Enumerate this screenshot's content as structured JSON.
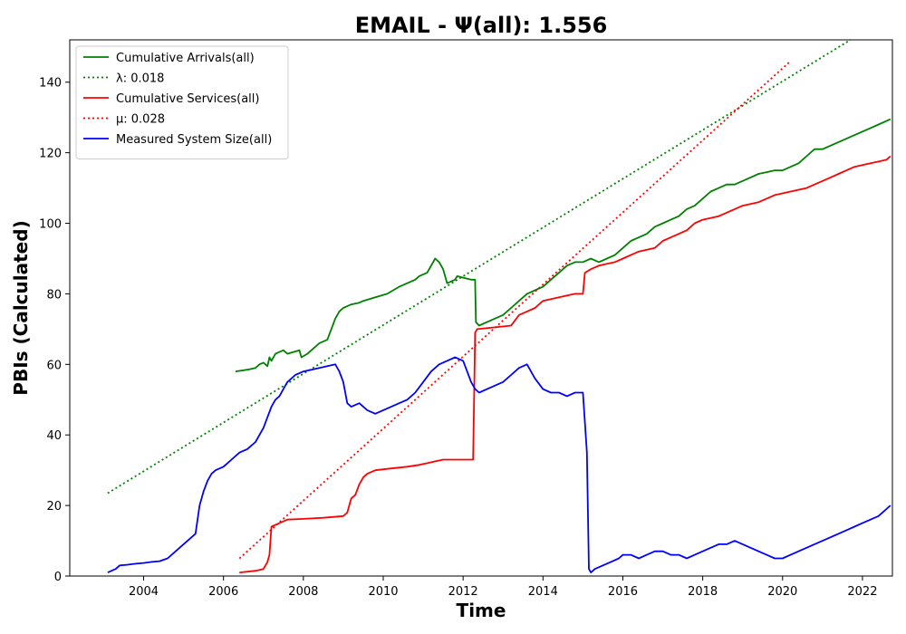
{
  "chart_data": {
    "type": "line",
    "title": "EMAIL -  Ψ(all): 1.556",
    "xlabel": "Time",
    "ylabel": "PBIs (Calculated)",
    "xlim": [
      2002.15,
      2022.75
    ],
    "ylim": [
      0,
      152
    ],
    "xticks": [
      2004,
      2006,
      2008,
      2010,
      2012,
      2014,
      2016,
      2018,
      2020,
      2022
    ],
    "yticks": [
      0,
      20,
      40,
      60,
      80,
      100,
      120,
      140
    ],
    "grid": false,
    "legend_position": "top-left",
    "series": [
      {
        "name": "Cumulative Arrivals(all)",
        "color": "#008000",
        "style": "solid",
        "points": [
          [
            2006.3,
            58
          ],
          [
            2006.6,
            58.5
          ],
          [
            2006.8,
            59
          ],
          [
            2006.9,
            60
          ],
          [
            2007.0,
            60.5
          ],
          [
            2007.1,
            59.5
          ],
          [
            2007.15,
            62
          ],
          [
            2007.2,
            61
          ],
          [
            2007.3,
            63
          ],
          [
            2007.5,
            64
          ],
          [
            2007.6,
            63
          ],
          [
            2007.9,
            64
          ],
          [
            2007.95,
            62
          ],
          [
            2008.1,
            63
          ],
          [
            2008.3,
            65
          ],
          [
            2008.4,
            66
          ],
          [
            2008.6,
            67
          ],
          [
            2008.7,
            70
          ],
          [
            2008.8,
            73
          ],
          [
            2008.9,
            75
          ],
          [
            2009.0,
            76
          ],
          [
            2009.2,
            77
          ],
          [
            2009.4,
            77.5
          ],
          [
            2009.5,
            78
          ],
          [
            2009.8,
            79
          ],
          [
            2010.1,
            80
          ],
          [
            2010.4,
            82
          ],
          [
            2010.6,
            83
          ],
          [
            2010.8,
            84
          ],
          [
            2010.9,
            85
          ],
          [
            2011.1,
            86
          ],
          [
            2011.2,
            88
          ],
          [
            2011.3,
            90
          ],
          [
            2011.4,
            89
          ],
          [
            2011.5,
            87
          ],
          [
            2011.6,
            83
          ],
          [
            2011.8,
            84
          ],
          [
            2011.85,
            85
          ],
          [
            2012.2,
            84
          ],
          [
            2012.3,
            84
          ],
          [
            2012.32,
            72
          ],
          [
            2012.4,
            71
          ],
          [
            2012.6,
            72
          ],
          [
            2012.8,
            73
          ],
          [
            2013.0,
            74
          ],
          [
            2013.2,
            76
          ],
          [
            2013.4,
            78
          ],
          [
            2013.5,
            79
          ],
          [
            2013.6,
            80
          ],
          [
            2013.8,
            81
          ],
          [
            2014.0,
            82
          ],
          [
            2014.2,
            84
          ],
          [
            2014.4,
            86
          ],
          [
            2014.5,
            87
          ],
          [
            2014.6,
            88
          ],
          [
            2014.8,
            89
          ],
          [
            2015.0,
            89
          ],
          [
            2015.2,
            90
          ],
          [
            2015.4,
            89
          ],
          [
            2015.6,
            90
          ],
          [
            2015.8,
            91
          ],
          [
            2016.0,
            93
          ],
          [
            2016.2,
            95
          ],
          [
            2016.4,
            96
          ],
          [
            2016.6,
            97
          ],
          [
            2016.8,
            99
          ],
          [
            2017.0,
            100
          ],
          [
            2017.2,
            101
          ],
          [
            2017.4,
            102
          ],
          [
            2017.6,
            104
          ],
          [
            2017.8,
            105
          ],
          [
            2018.0,
            107
          ],
          [
            2018.2,
            109
          ],
          [
            2018.4,
            110
          ],
          [
            2018.6,
            111
          ],
          [
            2018.8,
            111
          ],
          [
            2019.0,
            112
          ],
          [
            2019.2,
            113
          ],
          [
            2019.4,
            114
          ],
          [
            2019.6,
            114.5
          ],
          [
            2019.8,
            115
          ],
          [
            2020.0,
            115
          ],
          [
            2020.2,
            116
          ],
          [
            2020.4,
            117
          ],
          [
            2020.6,
            119
          ],
          [
            2020.8,
            121
          ],
          [
            2021.0,
            121
          ],
          [
            2021.2,
            122
          ],
          [
            2021.4,
            123
          ],
          [
            2021.6,
            124
          ],
          [
            2021.8,
            125
          ],
          [
            2022.0,
            126
          ],
          [
            2022.2,
            127
          ],
          [
            2022.4,
            128
          ],
          [
            2022.6,
            129
          ],
          [
            2022.7,
            129.5
          ]
        ]
      },
      {
        "name": "λ: 0.018",
        "color": "#008000",
        "style": "dotted",
        "points": [
          [
            2003.1,
            23.5
          ],
          [
            2021.7,
            152
          ]
        ]
      },
      {
        "name": "Cumulative Services(all)",
        "color": "#ff0000",
        "style": "solid",
        "points": [
          [
            2006.4,
            1
          ],
          [
            2006.8,
            1.5
          ],
          [
            2007.0,
            2
          ],
          [
            2007.1,
            4
          ],
          [
            2007.15,
            6
          ],
          [
            2007.2,
            14
          ],
          [
            2007.4,
            15
          ],
          [
            2007.6,
            16
          ],
          [
            2008.0,
            16.2
          ],
          [
            2008.5,
            16.5
          ],
          [
            2009.0,
            17
          ],
          [
            2009.1,
            18
          ],
          [
            2009.2,
            22
          ],
          [
            2009.3,
            23
          ],
          [
            2009.4,
            26
          ],
          [
            2009.5,
            28
          ],
          [
            2009.6,
            29
          ],
          [
            2009.8,
            30
          ],
          [
            2010.2,
            30.5
          ],
          [
            2010.6,
            31
          ],
          [
            2010.9,
            31.5
          ],
          [
            2011.1,
            32
          ],
          [
            2011.3,
            32.5
          ],
          [
            2011.5,
            33
          ],
          [
            2012.25,
            33
          ],
          [
            2012.3,
            69
          ],
          [
            2012.35,
            70
          ],
          [
            2012.8,
            70.5
          ],
          [
            2013.2,
            71
          ],
          [
            2013.4,
            74
          ],
          [
            2013.6,
            75
          ],
          [
            2013.8,
            76
          ],
          [
            2014.0,
            78
          ],
          [
            2014.4,
            79
          ],
          [
            2014.8,
            80
          ],
          [
            2015.0,
            80
          ],
          [
            2015.05,
            86
          ],
          [
            2015.2,
            87
          ],
          [
            2015.4,
            88
          ],
          [
            2015.8,
            89
          ],
          [
            2016.0,
            90
          ],
          [
            2016.2,
            91
          ],
          [
            2016.4,
            92
          ],
          [
            2016.8,
            93
          ],
          [
            2017.0,
            95
          ],
          [
            2017.2,
            96
          ],
          [
            2017.4,
            97
          ],
          [
            2017.6,
            98
          ],
          [
            2017.8,
            100
          ],
          [
            2018.0,
            101
          ],
          [
            2018.4,
            102
          ],
          [
            2018.6,
            103
          ],
          [
            2018.8,
            104
          ],
          [
            2019.0,
            105
          ],
          [
            2019.4,
            106
          ],
          [
            2019.6,
            107
          ],
          [
            2019.8,
            108
          ],
          [
            2020.2,
            109
          ],
          [
            2020.6,
            110
          ],
          [
            2020.8,
            111
          ],
          [
            2021.0,
            112
          ],
          [
            2021.2,
            113
          ],
          [
            2021.4,
            114
          ],
          [
            2021.6,
            115
          ],
          [
            2021.8,
            116
          ],
          [
            2022.0,
            116.5
          ],
          [
            2022.2,
            117
          ],
          [
            2022.4,
            117.5
          ],
          [
            2022.6,
            118
          ],
          [
            2022.7,
            119
          ]
        ]
      },
      {
        "name": "μ: 0.028",
        "color": "#ff0000",
        "style": "dotted",
        "points": [
          [
            2006.4,
            5
          ],
          [
            2020.2,
            146
          ]
        ]
      },
      {
        "name": "Measured System Size(all)",
        "color": "#0000ff",
        "style": "solid",
        "points": [
          [
            2003.1,
            1
          ],
          [
            2003.3,
            2
          ],
          [
            2003.4,
            3
          ],
          [
            2003.6,
            3.2
          ],
          [
            2003.8,
            3.5
          ],
          [
            2004.0,
            3.7
          ],
          [
            2004.2,
            4
          ],
          [
            2004.4,
            4.2
          ],
          [
            2004.6,
            5
          ],
          [
            2004.8,
            7
          ],
          [
            2005.0,
            9
          ],
          [
            2005.2,
            11
          ],
          [
            2005.3,
            12
          ],
          [
            2005.4,
            20
          ],
          [
            2005.5,
            24
          ],
          [
            2005.6,
            27
          ],
          [
            2005.7,
            29
          ],
          [
            2005.8,
            30
          ],
          [
            2006.0,
            31
          ],
          [
            2006.2,
            33
          ],
          [
            2006.4,
            35
          ],
          [
            2006.6,
            36
          ],
          [
            2006.8,
            38
          ],
          [
            2006.9,
            40
          ],
          [
            2007.0,
            42
          ],
          [
            2007.1,
            45
          ],
          [
            2007.2,
            48
          ],
          [
            2007.3,
            50
          ],
          [
            2007.4,
            51
          ],
          [
            2007.5,
            53
          ],
          [
            2007.6,
            55
          ],
          [
            2007.8,
            57
          ],
          [
            2008.0,
            58
          ],
          [
            2008.2,
            58.5
          ],
          [
            2008.4,
            59
          ],
          [
            2008.6,
            59.5
          ],
          [
            2008.8,
            60
          ],
          [
            2008.9,
            58
          ],
          [
            2009.0,
            55
          ],
          [
            2009.1,
            49
          ],
          [
            2009.2,
            48
          ],
          [
            2009.4,
            49
          ],
          [
            2009.5,
            48
          ],
          [
            2009.6,
            47
          ],
          [
            2009.8,
            46
          ],
          [
            2010.0,
            47
          ],
          [
            2010.2,
            48
          ],
          [
            2010.4,
            49
          ],
          [
            2010.6,
            50
          ],
          [
            2010.8,
            52
          ],
          [
            2011.0,
            55
          ],
          [
            2011.2,
            58
          ],
          [
            2011.4,
            60
          ],
          [
            2011.6,
            61
          ],
          [
            2011.8,
            62
          ],
          [
            2012.0,
            61
          ],
          [
            2012.1,
            58
          ],
          [
            2012.2,
            55
          ],
          [
            2012.3,
            53
          ],
          [
            2012.4,
            52
          ],
          [
            2012.6,
            53
          ],
          [
            2012.8,
            54
          ],
          [
            2013.0,
            55
          ],
          [
            2013.2,
            57
          ],
          [
            2013.4,
            59
          ],
          [
            2013.6,
            60
          ],
          [
            2013.8,
            56
          ],
          [
            2014.0,
            53
          ],
          [
            2014.2,
            52
          ],
          [
            2014.4,
            52
          ],
          [
            2014.6,
            51
          ],
          [
            2014.8,
            52
          ],
          [
            2015.0,
            52
          ],
          [
            2015.1,
            35
          ],
          [
            2015.15,
            2
          ],
          [
            2015.2,
            1
          ],
          [
            2015.3,
            2
          ],
          [
            2015.5,
            3
          ],
          [
            2015.7,
            4
          ],
          [
            2015.9,
            5
          ],
          [
            2016.0,
            6
          ],
          [
            2016.2,
            6
          ],
          [
            2016.4,
            5
          ],
          [
            2016.6,
            6
          ],
          [
            2016.8,
            7
          ],
          [
            2017.0,
            7
          ],
          [
            2017.2,
            6
          ],
          [
            2017.4,
            6
          ],
          [
            2017.6,
            5
          ],
          [
            2017.8,
            6
          ],
          [
            2018.0,
            7
          ],
          [
            2018.2,
            8
          ],
          [
            2018.4,
            9
          ],
          [
            2018.6,
            9
          ],
          [
            2018.8,
            10
          ],
          [
            2019.0,
            9
          ],
          [
            2019.2,
            8
          ],
          [
            2019.4,
            7
          ],
          [
            2019.6,
            6
          ],
          [
            2019.8,
            5
          ],
          [
            2020.0,
            5
          ],
          [
            2020.2,
            6
          ],
          [
            2020.4,
            7
          ],
          [
            2020.6,
            8
          ],
          [
            2020.8,
            9
          ],
          [
            2021.0,
            10
          ],
          [
            2021.2,
            11
          ],
          [
            2021.4,
            12
          ],
          [
            2021.6,
            13
          ],
          [
            2021.8,
            14
          ],
          [
            2022.0,
            15
          ],
          [
            2022.2,
            16
          ],
          [
            2022.4,
            17
          ],
          [
            2022.5,
            18
          ],
          [
            2022.6,
            19
          ],
          [
            2022.7,
            20
          ]
        ]
      }
    ]
  }
}
